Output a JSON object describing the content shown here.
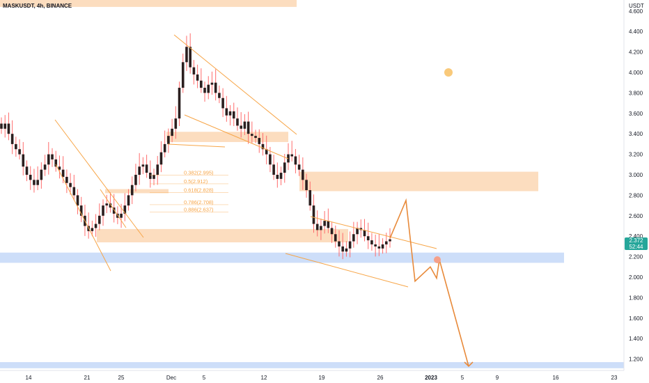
{
  "symbol_label": "MASKUSDT, 4h, BINANCE",
  "price_axis": {
    "unit": "USDT",
    "ticks": [
      "4.600",
      "4.400",
      "4.200",
      "4.000",
      "3.800",
      "3.600",
      "3.400",
      "3.200",
      "3.000",
      "2.800",
      "2.600",
      "2.400",
      "2.200",
      "2.000",
      "1.800",
      "1.600",
      "1.400",
      "1.200"
    ]
  },
  "time_axis": {
    "ticks": [
      "14",
      "21",
      "25",
      "Dec",
      "5",
      "12",
      "19",
      "26",
      "2023",
      "5",
      "9",
      "16",
      "23"
    ]
  },
  "last_price": {
    "price": "2.372",
    "countdown": "52:44"
  },
  "fib_levels": [
    {
      "label": "0.382(2.995)",
      "price": 2.995
    },
    {
      "label": "0.5(2.912)",
      "price": 2.912
    },
    {
      "label": "0.618(2.828)",
      "price": 2.828
    },
    {
      "label": "0.786(2.708)",
      "price": 2.708
    },
    {
      "label": "0.886(2.637)",
      "price": 2.637
    }
  ],
  "colors": {
    "candle_body": "#2b1f1f",
    "wick": "#ff6b6b",
    "zone_orange": "#fcd9b8",
    "zone_blue": "#c8daf8",
    "line_orange": "#f7a547",
    "projection": "#e88a3a",
    "price_tag": "#26a69a",
    "marker_dot": "#f9c97a",
    "target_dot": "#f5a08a",
    "axis_text": "#131722"
  },
  "chart_data": {
    "type": "candlestick",
    "symbol": "MASKUSDT",
    "interval": "4h",
    "exchange": "BINANCE",
    "ylim": [
      1.1,
      4.8
    ],
    "yscale": "linear",
    "x_ticks": [
      "14",
      "21",
      "25",
      "Dec",
      "5",
      "12",
      "19",
      "26",
      "2023",
      "5",
      "9",
      "16",
      "23"
    ],
    "close_series": [
      3.45,
      3.5,
      3.4,
      3.3,
      3.25,
      3.2,
      3.08,
      3.0,
      2.95,
      2.9,
      2.95,
      3.05,
      3.1,
      3.2,
      3.15,
      3.08,
      3.05,
      2.98,
      2.92,
      2.88,
      2.8,
      2.7,
      2.6,
      2.5,
      2.45,
      2.48,
      2.52,
      2.6,
      2.7,
      2.72,
      2.68,
      2.62,
      2.58,
      2.62,
      2.7,
      2.8,
      2.9,
      3.0,
      3.08,
      3.1,
      3.02,
      2.96,
      3.0,
      3.1,
      3.22,
      3.3,
      3.38,
      3.45,
      3.55,
      3.85,
      4.1,
      4.25,
      4.05,
      3.98,
      3.92,
      3.85,
      3.8,
      3.88,
      3.9,
      3.8,
      3.75,
      3.65,
      3.58,
      3.62,
      3.55,
      3.48,
      3.45,
      3.52,
      3.4,
      3.38,
      3.36,
      3.3,
      3.25,
      3.2,
      3.1,
      3.0,
      2.96,
      3.02,
      3.12,
      3.2,
      3.18,
      3.1,
      3.05,
      2.95,
      2.85,
      2.7,
      2.52,
      2.46,
      2.5,
      2.55,
      2.48,
      2.42,
      2.35,
      2.3,
      2.25,
      2.28,
      2.35,
      2.42,
      2.48,
      2.46,
      2.4,
      2.36,
      2.32,
      2.3,
      2.28,
      2.32,
      2.35,
      2.37
    ],
    "zones": [
      {
        "from": 4.64,
        "to": 4.72,
        "color": "orange"
      },
      {
        "from": 3.32,
        "to": 3.42,
        "color": "orange"
      },
      {
        "from": 2.84,
        "to": 3.03,
        "color": "orange"
      },
      {
        "from": 2.82,
        "to": 2.86,
        "color": "orange"
      },
      {
        "from": 2.34,
        "to": 2.47,
        "color": "orange"
      },
      {
        "from": 2.14,
        "to": 2.24,
        "color": "blue"
      },
      {
        "from": 1.11,
        "to": 1.17,
        "color": "blue"
      }
    ],
    "projection_path": [
      2.38,
      2.75,
      1.96,
      2.1,
      1.99,
      2.17,
      1.13
    ],
    "last_price": 2.372
  }
}
